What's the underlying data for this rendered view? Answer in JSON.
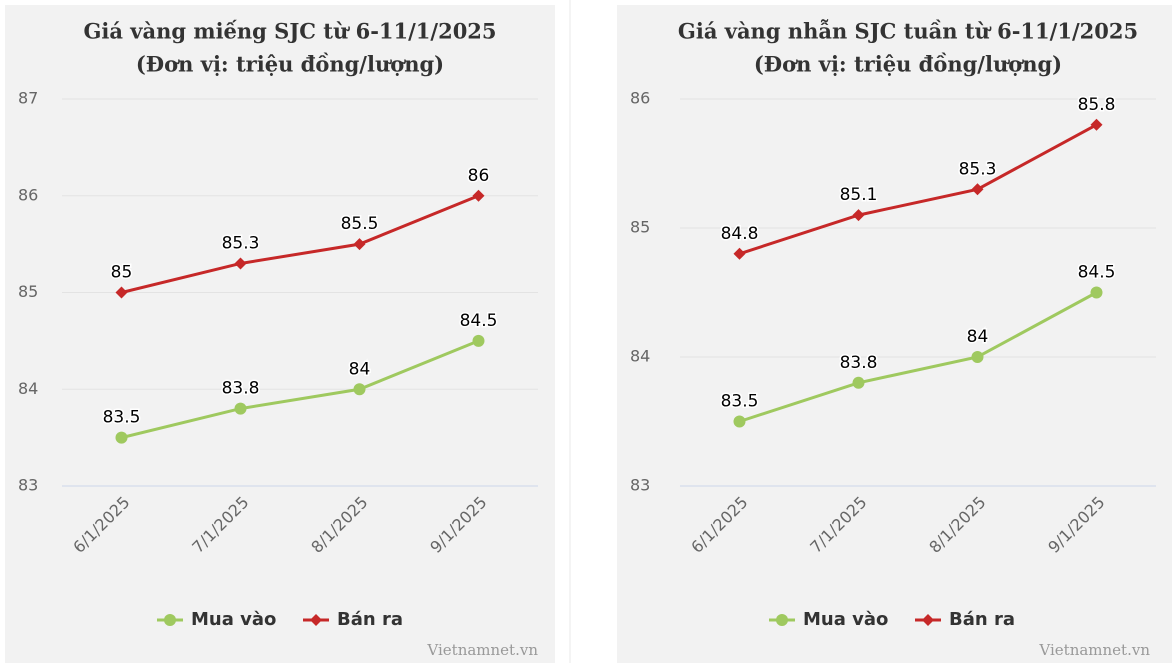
{
  "chart_data": [
    {
      "type": "line",
      "title": "Giá vàng miếng SJC từ 6-11/1/2025",
      "subtitle": "(Đơn vị: triệu đồng/lượng)",
      "categories": [
        "6/1/2025",
        "7/1/2025",
        "8/1/2025",
        "9/1/2025"
      ],
      "series": [
        {
          "name": "Mua vào",
          "color": "#9fc95f",
          "values": [
            83.5,
            83.8,
            84,
            84.5
          ]
        },
        {
          "name": "Bán ra",
          "color": "#c62828",
          "values": [
            85,
            85.3,
            85.5,
            86
          ]
        }
      ],
      "ylim": [
        83,
        87
      ],
      "yticks": [
        83,
        84,
        85,
        86,
        87
      ],
      "grid": true,
      "legend": "bottom",
      "source": "Vietnamnet.vn"
    },
    {
      "type": "line",
      "title": "Giá vàng nhẫn SJC tuần từ 6-11/1/2025",
      "subtitle": "(Đơn vị: triệu đồng/lượng)",
      "categories": [
        "6/1/2025",
        "7/1/2025",
        "8/1/2025",
        "9/1/2025"
      ],
      "series": [
        {
          "name": "Mua vào",
          "color": "#9fc95f",
          "values": [
            83.5,
            83.8,
            84,
            84.5
          ]
        },
        {
          "name": "Bán ra",
          "color": "#c62828",
          "values": [
            84.8,
            85.1,
            85.3,
            85.8
          ]
        }
      ],
      "ylim": [
        83,
        86
      ],
      "yticks": [
        83,
        84,
        85,
        86
      ],
      "grid": true,
      "legend": "bottom",
      "source": "Vietnamnet.vn"
    }
  ]
}
